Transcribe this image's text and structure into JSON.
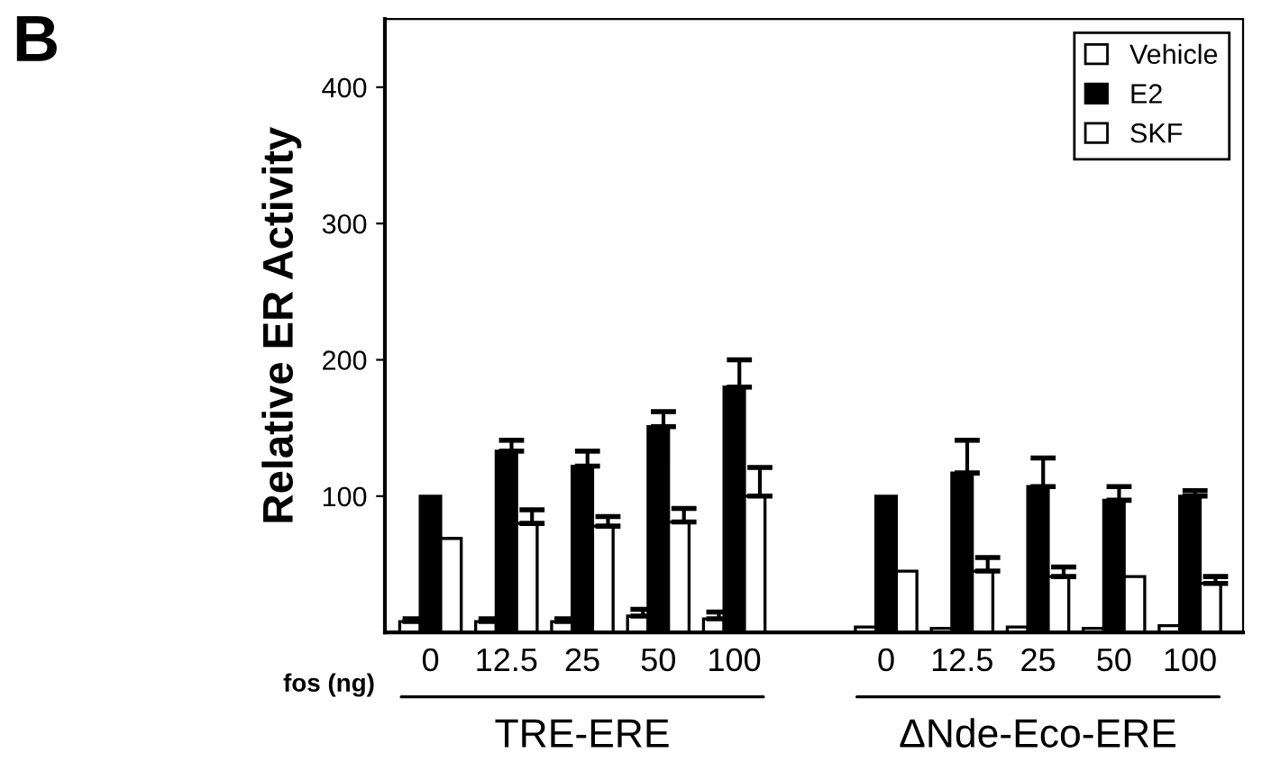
{
  "chart_data": {
    "type": "bar",
    "ylabel": "Relative ER Activity",
    "categories": [
      "0",
      "12.5",
      "25",
      "50",
      "100",
      null,
      "0",
      "12.5",
      "25",
      "50",
      "100"
    ],
    "series": [
      {
        "name": "Vehicle",
        "color": "#ffffff",
        "values": [
          8,
          8,
          8,
          12,
          10,
          null,
          4,
          3,
          4,
          3,
          5
        ],
        "errors": [
          [
            8,
            10
          ],
          [
            8,
            10
          ],
          [
            8,
            10
          ],
          [
            12,
            17
          ],
          [
            10,
            15
          ],
          null,
          null,
          null,
          null,
          null,
          null
        ]
      },
      {
        "name": "E2",
        "color": "#000000",
        "values": [
          100,
          133,
          122,
          151,
          180,
          null,
          100,
          117,
          107,
          97,
          100
        ],
        "errors": [
          null,
          [
            133,
            141
          ],
          [
            122,
            133
          ],
          [
            151,
            162
          ],
          [
            180,
            200
          ],
          null,
          null,
          [
            117,
            141
          ],
          [
            107,
            128
          ],
          [
            97,
            107
          ],
          [
            100,
            104
          ]
        ]
      },
      {
        "name": "SKF",
        "color": "#ffffff",
        "values": [
          69,
          80,
          78,
          81,
          100,
          null,
          45,
          45,
          41,
          41,
          36
        ],
        "errors": [
          null,
          [
            80,
            90
          ],
          [
            78,
            85
          ],
          [
            81,
            91
          ],
          [
            100,
            121
          ],
          null,
          null,
          [
            45,
            55
          ],
          [
            41,
            48
          ],
          null,
          [
            36,
            41
          ]
        ]
      }
    ],
    "ylim": [
      0,
      450
    ],
    "yticks": [
      100,
      200,
      300,
      400
    ],
    "legend": "top right",
    "grid": false,
    "annotations": [
      "B",
      "fos (ng)",
      "TRE-ERE",
      "ΔNde-Eco-ERE"
    ]
  }
}
